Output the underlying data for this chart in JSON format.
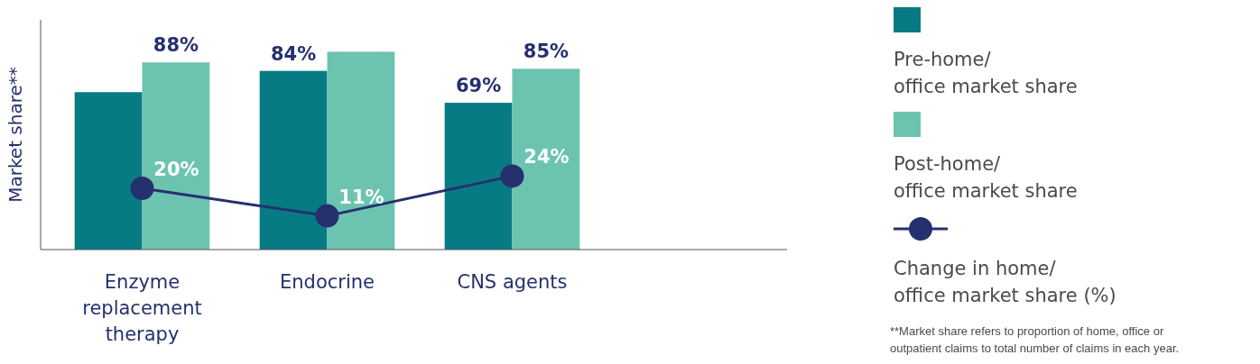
{
  "chart_data": {
    "type": "bar",
    "ylabel": "Market share**",
    "categories": [
      "Enzyme replacement therapy",
      "Endocrine",
      "CNS agents"
    ],
    "ylim": [
      0,
      108
    ],
    "y2lim": [
      0,
      75
    ],
    "legend": "right",
    "marker": "circle",
    "series": [
      {
        "name": "Pre-home/ office market share",
        "color": "#077b83",
        "values": [
          74,
          84,
          69
        ],
        "value_labels": [
          null,
          "84%",
          "69%"
        ]
      },
      {
        "name": "Post-home/ office market share",
        "color": "#6cc4b0",
        "values": [
          88,
          93,
          85
        ],
        "value_labels": [
          "88%",
          null,
          "85%"
        ]
      },
      {
        "name": "Change in home/ office market share (%)",
        "type": "line",
        "axis": "y2",
        "color": "#26306e",
        "values": [
          20,
          11,
          24
        ],
        "value_labels": [
          "20%",
          "11%",
          "24%"
        ]
      }
    ],
    "annotations": [
      "**Market share refers to proportion of home, office or outpatient claims to total number of claims in each year."
    ]
  }
}
